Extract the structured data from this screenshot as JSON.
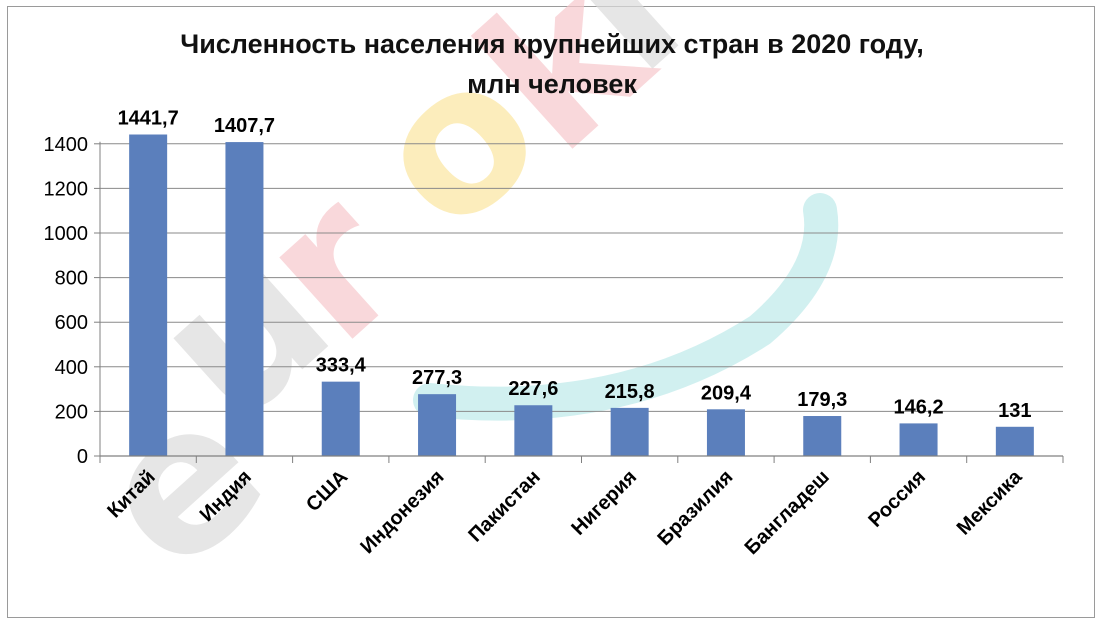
{
  "chart_data": {
    "type": "bar",
    "title": "Численность населения крупнейших стран в 2020 году,",
    "title_line2": "млн человек",
    "xlabel": "",
    "ylabel": "",
    "categories": [
      "Китай",
      "Индия",
      "США",
      "Индонезия",
      "Пакистан",
      "Нигерия",
      "Бразилия",
      "Бангладеш",
      "Россия",
      "Мексика"
    ],
    "values": [
      1441.7,
      1407.7,
      333.4,
      277.3,
      227.6,
      215.8,
      209.4,
      179.3,
      146.2,
      131
    ],
    "data_labels": [
      "1441,7",
      "1407,7",
      "333,4",
      "277,3",
      "227,6",
      "215,8",
      "209,4",
      "179,3",
      "146,2",
      "131"
    ],
    "ylim": [
      0,
      1400
    ],
    "yticks": [
      0,
      200,
      400,
      600,
      800,
      1000,
      1200,
      1400
    ],
    "grid": true,
    "legend": "none",
    "bar_color": "#5b7fbc",
    "grid_color": "#8a8a8a"
  },
  "watermark": {
    "text": "euroki",
    "letters": [
      "e",
      "u",
      "r",
      "o",
      "k",
      "i"
    ],
    "colors": [
      "#dcdcdc",
      "#dcdcdc",
      "#f7c8cc",
      "#fbe6a0",
      "#f7c8cc",
      "#dcdcdc"
    ],
    "swoosh_color": "#c5ecec"
  }
}
